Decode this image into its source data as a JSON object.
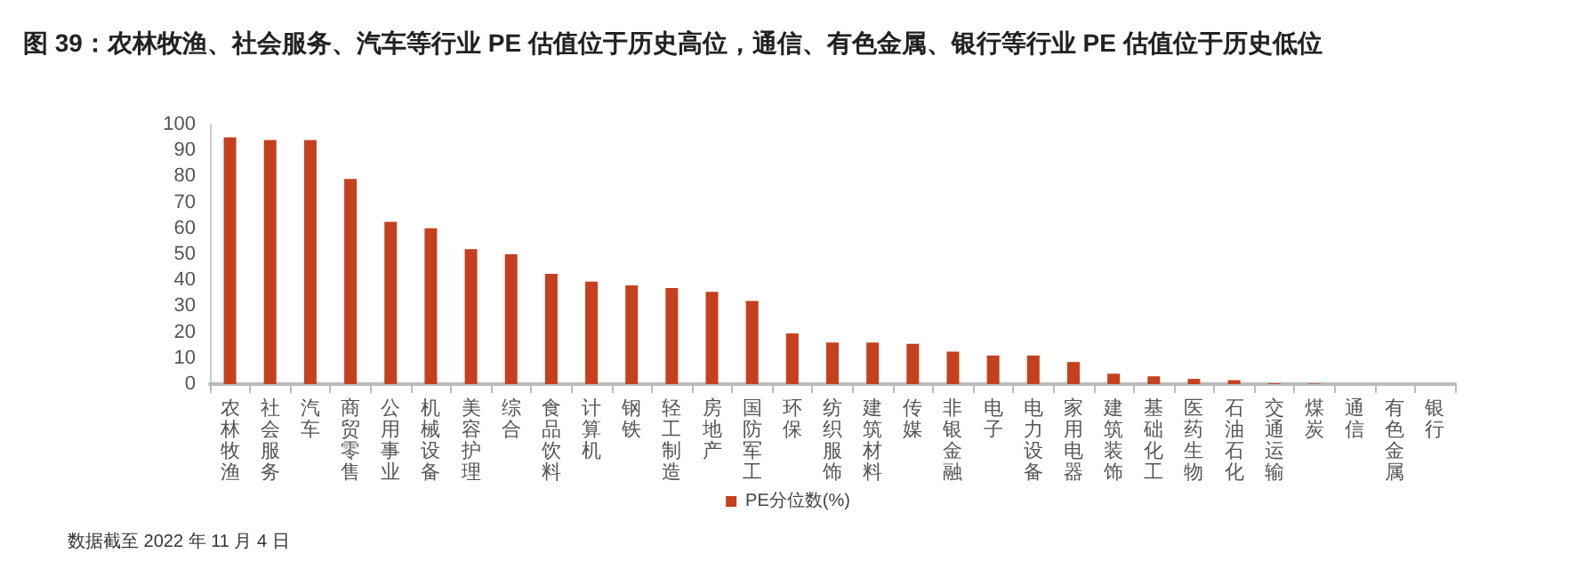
{
  "chart_data": {
    "type": "bar",
    "title": "图 39：农林牧渔、社会服务、汽车等行业 PE 估值位于历史高位，通信、有色金属、银行等行业 PE 估值位于历史低位",
    "categories": [
      "农林牧渔",
      "社会服务",
      "汽车",
      "商贸零售",
      "公用事业",
      "机械设备",
      "美容护理",
      "综合",
      "食品饮料",
      "计算机",
      "钢铁",
      "轻工制造",
      "房地产",
      "国防军工",
      "环保",
      "纺织服饰",
      "建筑材料",
      "传媒",
      "非银金融",
      "电子",
      "电力设备",
      "家用电器",
      "建筑装饰",
      "基础化工",
      "医药生物",
      "石油石化",
      "交通运输",
      "煤炭",
      "通信",
      "有色金属",
      "银行"
    ],
    "series": [
      {
        "name": "PE分位数(%)",
        "color": "#c5401f",
        "values": [
          95,
          94,
          94,
          79,
          62.5,
          60,
          52,
          50,
          42.5,
          39.5,
          38,
          37,
          35.5,
          32,
          19.5,
          16,
          16,
          15.5,
          12.5,
          11,
          11,
          8.5,
          4,
          3,
          2,
          1.5,
          0.3,
          0.2,
          null,
          null,
          null
        ]
      }
    ],
    "ylim": [
      0,
      100
    ],
    "yticks": [
      0,
      10,
      20,
      30,
      40,
      50,
      60,
      70,
      80,
      90,
      100
    ],
    "grid": false,
    "legend": "bottom",
    "annotations": [
      "数据截至 2022 年 11 月 4 日"
    ]
  }
}
